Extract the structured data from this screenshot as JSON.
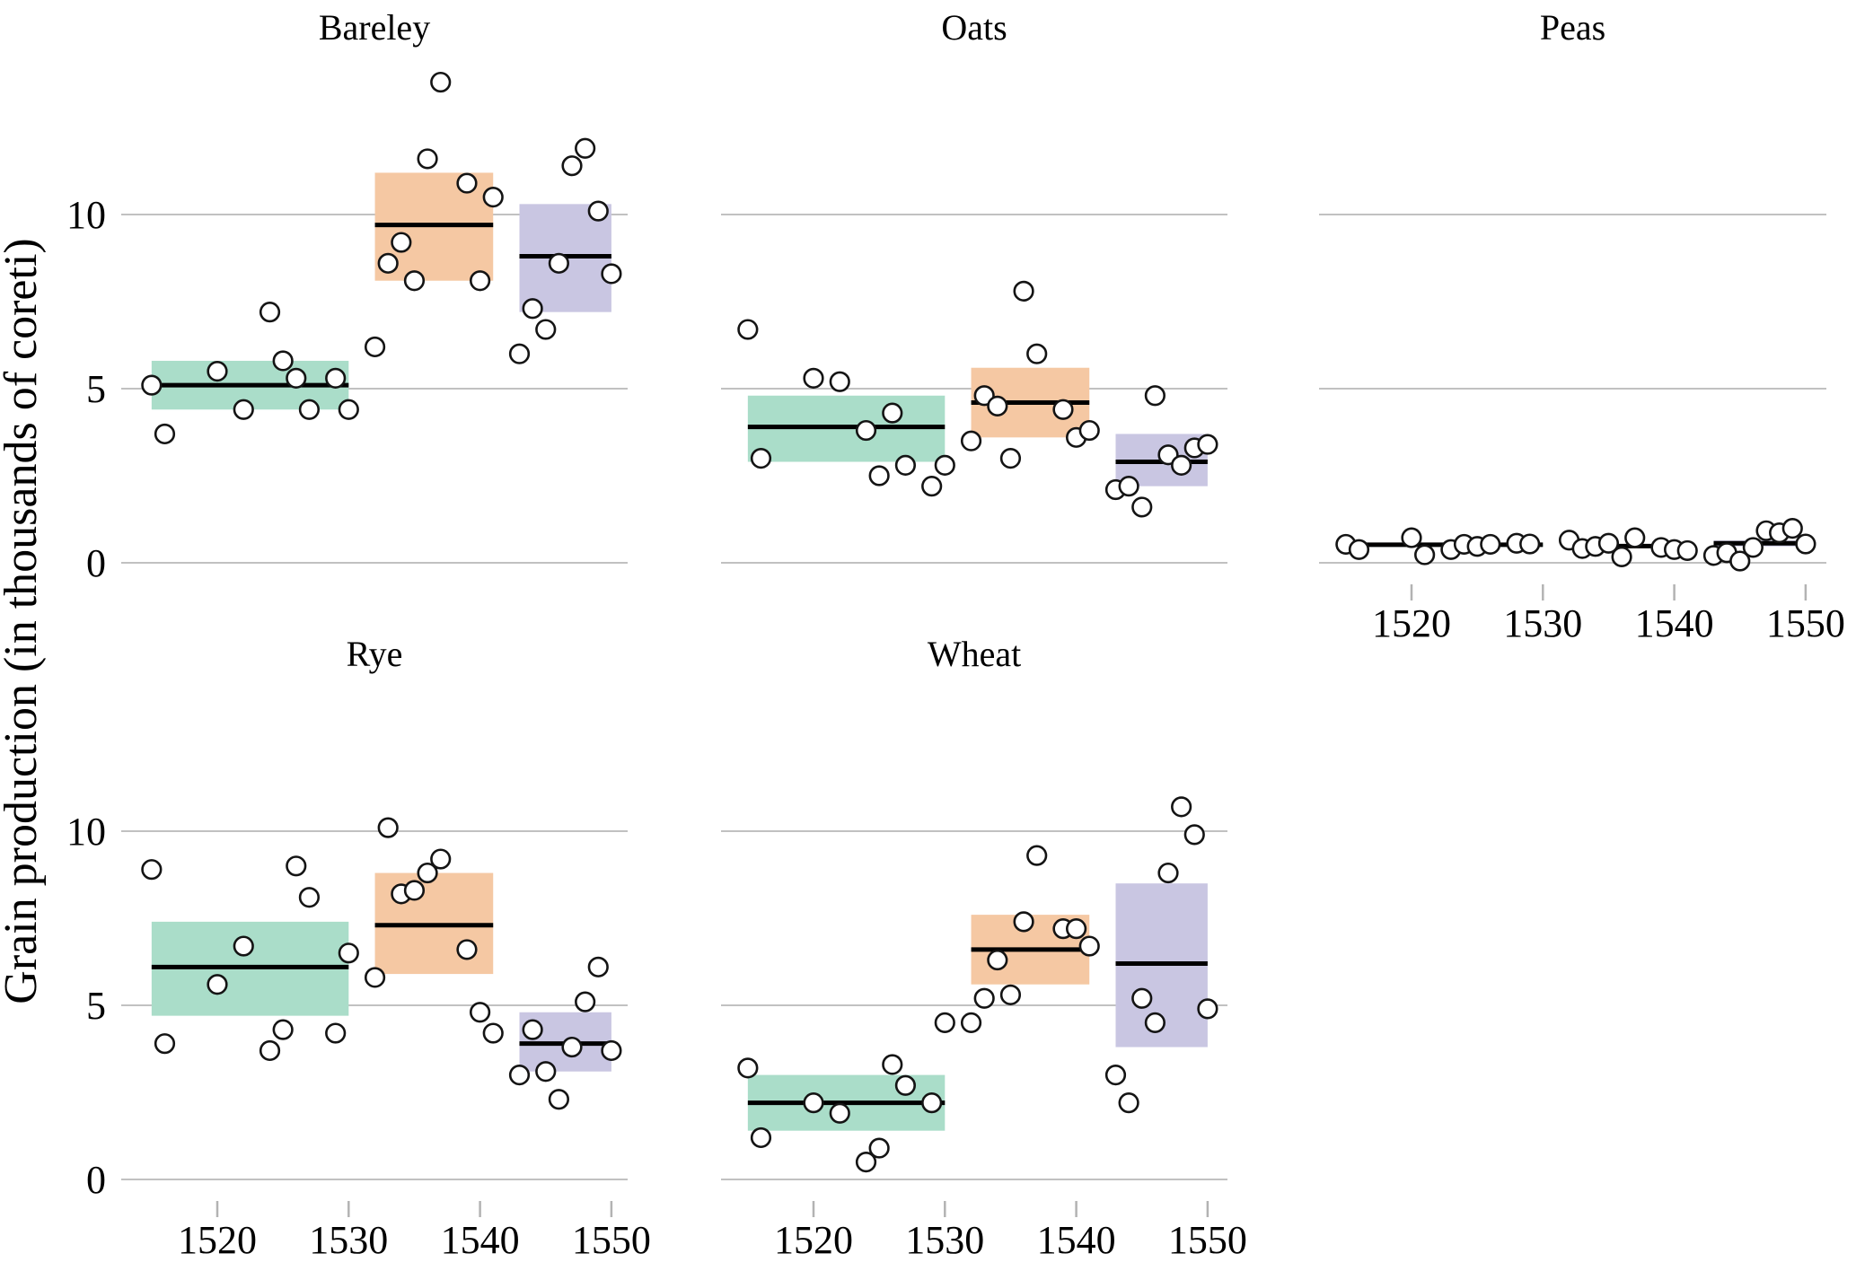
{
  "figure": {
    "y_axis_label": "Grain production (in thousands of coreti)",
    "x_tick_years": [
      1520,
      1530,
      1540,
      1550
    ],
    "y_tick_values": [
      0,
      5,
      10
    ],
    "colors": {
      "period_fills": [
        "#aaddc9",
        "#f5c8a3",
        "#c9c6e2"
      ],
      "gridline": "#c1c1c1",
      "tick": "#b3b3b3",
      "crossbar_midline": "#000000",
      "point_fill": "#ffffff",
      "point_stroke": "#141414",
      "text": "#000000",
      "background": "#ffffff"
    }
  },
  "chart_data": [
    {
      "type": "scatter",
      "title": "Bareley",
      "xlabel": "",
      "ylabel": "Grain production (in thousands of coreti)",
      "ylim": [
        0,
        14.8
      ],
      "xlim": [
        1513,
        1551.5
      ],
      "grid": "horizontal",
      "crossbars": [
        {
          "year_start": 1515,
          "year_end": 1530,
          "low": 4.4,
          "mean": 5.1,
          "high": 5.8
        },
        {
          "year_start": 1532,
          "year_end": 1541,
          "low": 8.1,
          "mean": 9.7,
          "high": 11.2
        },
        {
          "year_start": 1543,
          "year_end": 1550,
          "low": 7.2,
          "mean": 8.8,
          "high": 10.3
        }
      ],
      "points": [
        [
          1515,
          5.1
        ],
        [
          1516,
          3.7
        ],
        [
          1520,
          5.5
        ],
        [
          1522,
          4.4
        ],
        [
          1524,
          7.2
        ],
        [
          1525,
          5.8
        ],
        [
          1526,
          5.3
        ],
        [
          1527,
          4.4
        ],
        [
          1529,
          5.3
        ],
        [
          1530,
          4.4
        ],
        [
          1532,
          6.2
        ],
        [
          1533,
          8.6
        ],
        [
          1534,
          9.2
        ],
        [
          1535,
          8.1
        ],
        [
          1536,
          11.6
        ],
        [
          1537,
          13.8
        ],
        [
          1539,
          10.9
        ],
        [
          1540,
          8.1
        ],
        [
          1541,
          10.5
        ],
        [
          1543,
          6.0
        ],
        [
          1544,
          7.3
        ],
        [
          1545,
          6.7
        ],
        [
          1546,
          8.6
        ],
        [
          1547,
          11.4
        ],
        [
          1548,
          11.9
        ],
        [
          1549,
          10.1
        ],
        [
          1550,
          8.3
        ]
      ]
    },
    {
      "type": "scatter",
      "title": "Oats",
      "xlabel": "",
      "ylabel": "Grain production (in thousands of coreti)",
      "ylim": [
        0,
        14.8
      ],
      "xlim": [
        1513,
        1551.5
      ],
      "grid": "horizontal",
      "crossbars": [
        {
          "year_start": 1515,
          "year_end": 1530,
          "low": 2.9,
          "mean": 3.9,
          "high": 4.8
        },
        {
          "year_start": 1532,
          "year_end": 1541,
          "low": 3.6,
          "mean": 4.6,
          "high": 5.6
        },
        {
          "year_start": 1543,
          "year_end": 1550,
          "low": 2.2,
          "mean": 2.9,
          "high": 3.7
        }
      ],
      "points": [
        [
          1515,
          6.7
        ],
        [
          1516,
          3.0
        ],
        [
          1520,
          5.3
        ],
        [
          1522,
          5.2
        ],
        [
          1524,
          3.8
        ],
        [
          1525,
          2.5
        ],
        [
          1526,
          4.3
        ],
        [
          1527,
          2.8
        ],
        [
          1529,
          2.2
        ],
        [
          1530,
          2.8
        ],
        [
          1532,
          3.5
        ],
        [
          1533,
          4.8
        ],
        [
          1534,
          4.5
        ],
        [
          1535,
          3.0
        ],
        [
          1536,
          7.8
        ],
        [
          1537,
          6.0
        ],
        [
          1539,
          4.4
        ],
        [
          1540,
          3.6
        ],
        [
          1541,
          3.8
        ],
        [
          1543,
          2.1
        ],
        [
          1544,
          2.2
        ],
        [
          1545,
          1.6
        ],
        [
          1546,
          4.8
        ],
        [
          1547,
          3.1
        ],
        [
          1548,
          2.8
        ],
        [
          1549,
          3.3
        ],
        [
          1550,
          3.4
        ]
      ]
    },
    {
      "type": "scatter",
      "title": "Peas",
      "xlabel": "",
      "ylabel": "Grain production (in thousands of coreti)",
      "ylim": [
        0,
        14.8
      ],
      "xlim": [
        1513,
        1551.5
      ],
      "grid": "horizontal",
      "crossbars": [
        {
          "year_start": 1515,
          "year_end": 1530,
          "low": 0.46,
          "mean": 0.52,
          "high": 0.57
        },
        {
          "year_start": 1532,
          "year_end": 1541,
          "low": 0.42,
          "mean": 0.48,
          "high": 0.53
        },
        {
          "year_start": 1543,
          "year_end": 1550,
          "low": 0.47,
          "mean": 0.56,
          "high": 0.64
        }
      ],
      "points": [
        [
          1515,
          0.53
        ],
        [
          1516,
          0.38
        ],
        [
          1520,
          0.72
        ],
        [
          1521,
          0.23
        ],
        [
          1523,
          0.38
        ],
        [
          1524,
          0.53
        ],
        [
          1525,
          0.47
        ],
        [
          1526,
          0.53
        ],
        [
          1528,
          0.56
        ],
        [
          1529,
          0.54
        ],
        [
          1532,
          0.65
        ],
        [
          1533,
          0.41
        ],
        [
          1534,
          0.47
        ],
        [
          1535,
          0.56
        ],
        [
          1536,
          0.17
        ],
        [
          1537,
          0.72
        ],
        [
          1539,
          0.44
        ],
        [
          1540,
          0.38
        ],
        [
          1541,
          0.35
        ],
        [
          1543,
          0.21
        ],
        [
          1544,
          0.29
        ],
        [
          1545,
          0.05
        ],
        [
          1546,
          0.44
        ],
        [
          1547,
          0.92
        ],
        [
          1548,
          0.86
        ],
        [
          1549,
          0.99
        ],
        [
          1550,
          0.54
        ]
      ]
    },
    {
      "type": "scatter",
      "title": "Rye",
      "xlabel": "",
      "ylabel": "Grain production (in thousands of coreti)",
      "ylim": [
        0,
        14.4
      ],
      "xlim": [
        1513,
        1551.5
      ],
      "grid": "horizontal",
      "crossbars": [
        {
          "year_start": 1515,
          "year_end": 1530,
          "low": 4.7,
          "mean": 6.1,
          "high": 7.4
        },
        {
          "year_start": 1532,
          "year_end": 1541,
          "low": 5.9,
          "mean": 7.3,
          "high": 8.8
        },
        {
          "year_start": 1543,
          "year_end": 1550,
          "low": 3.1,
          "mean": 3.9,
          "high": 4.8
        }
      ],
      "points": [
        [
          1515,
          8.9
        ],
        [
          1516,
          3.9
        ],
        [
          1520,
          5.6
        ],
        [
          1522,
          6.7
        ],
        [
          1524,
          3.7
        ],
        [
          1525,
          4.3
        ],
        [
          1526,
          9.0
        ],
        [
          1527,
          8.1
        ],
        [
          1529,
          4.2
        ],
        [
          1530,
          6.5
        ],
        [
          1532,
          5.8
        ],
        [
          1533,
          10.1
        ],
        [
          1534,
          8.2
        ],
        [
          1535,
          8.3
        ],
        [
          1536,
          8.8
        ],
        [
          1537,
          9.2
        ],
        [
          1539,
          6.6
        ],
        [
          1540,
          4.8
        ],
        [
          1541,
          4.2
        ],
        [
          1543,
          3.0
        ],
        [
          1544,
          4.3
        ],
        [
          1545,
          3.1
        ],
        [
          1546,
          2.3
        ],
        [
          1547,
          3.8
        ],
        [
          1548,
          5.1
        ],
        [
          1549,
          6.1
        ],
        [
          1550,
          3.7
        ]
      ]
    },
    {
      "type": "scatter",
      "title": "Wheat",
      "xlabel": "",
      "ylabel": "Grain production (in thousands of coreti)",
      "ylim": [
        0,
        14.4
      ],
      "xlim": [
        1513,
        1551.5
      ],
      "grid": "horizontal",
      "crossbars": [
        {
          "year_start": 1515,
          "year_end": 1530,
          "low": 1.4,
          "mean": 2.2,
          "high": 3.0
        },
        {
          "year_start": 1532,
          "year_end": 1541,
          "low": 5.6,
          "mean": 6.6,
          "high": 7.6
        },
        {
          "year_start": 1543,
          "year_end": 1550,
          "low": 3.8,
          "mean": 6.2,
          "high": 8.5
        }
      ],
      "points": [
        [
          1515,
          3.2
        ],
        [
          1516,
          1.2
        ],
        [
          1520,
          2.2
        ],
        [
          1522,
          1.9
        ],
        [
          1524,
          0.5
        ],
        [
          1525,
          0.9
        ],
        [
          1526,
          3.3
        ],
        [
          1527,
          2.7
        ],
        [
          1529,
          2.2
        ],
        [
          1530,
          4.5
        ],
        [
          1532,
          4.5
        ],
        [
          1533,
          5.2
        ],
        [
          1534,
          6.3
        ],
        [
          1535,
          5.3
        ],
        [
          1536,
          7.4
        ],
        [
          1537,
          9.3
        ],
        [
          1539,
          7.2
        ],
        [
          1540,
          7.2
        ],
        [
          1541,
          6.7
        ],
        [
          1543,
          3.0
        ],
        [
          1544,
          2.2
        ],
        [
          1545,
          5.2
        ],
        [
          1546,
          4.5
        ],
        [
          1547,
          8.8
        ],
        [
          1548,
          10.7
        ],
        [
          1549,
          9.9
        ],
        [
          1550,
          4.9
        ]
      ]
    }
  ]
}
